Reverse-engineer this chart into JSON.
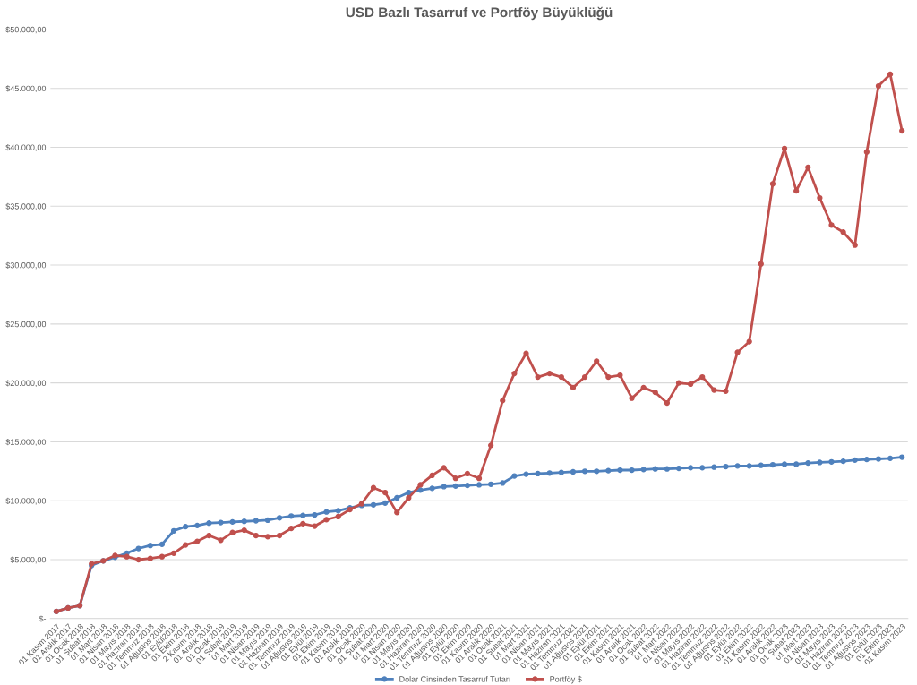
{
  "chart_data": {
    "type": "line",
    "title": "USD Bazlı Tasarruf ve Portföy Büyüklüğü",
    "categories": [
      "01 Kasım 2017",
      "01 Aralık 2017",
      "01 Ocak 2018",
      "01 Şubat 2018",
      "01 Mart 2018",
      "01 Nisan 2018",
      "01 Mayıs 2018",
      "01 Haziran 2018",
      "01 Temmuz 2018",
      "01 Ağustos 2018",
      "01 Eylül2018",
      "01 Ekim 2018",
      "2 Kasım 2018",
      "01 Aralık 2018",
      "01 Ocak 2019",
      "01 Şubat 2019",
      "01 Mart 2019",
      "01 Nisan 2019",
      "01 Mayıs 2019",
      "01 Haziran 2019",
      "01 Temmuz 2019",
      "01 Ağustos 2019",
      "01 Eylül 2019",
      "01 Ekim 2019",
      "01 Kasım 2019",
      "01 Aralık 2019",
      "01 Ocak 2020",
      "01 Şubat 2020",
      "01 Mart 2020",
      "01 Nisan 2020",
      "01 Mayıs 2020",
      "01 Haziran 2020",
      "01 Temmuz 2020",
      "01 Ağustos 2020",
      "01 Eylül 2020",
      "01 Ekim 2020",
      "01 Kasım 2020",
      "01 Aralık 2020",
      "01 Ocak 2021",
      "01 Şubat 2021",
      "01 Mart 2021",
      "01 Nisan 2021",
      "01 Mayıs 2021",
      "01 Haziran 2021",
      "01 Temmuz 2021",
      "01 Ağustos 2021",
      "01 Eylül 2021",
      "01 Ekim 2021",
      "01 Kasım 2021",
      "01 Aralık 2021",
      "01 Ocak 2022",
      "01 Şubat 2022",
      "01 Mart 2022",
      "01 Nisan 2022",
      "01 Mayıs 2022",
      "01 Haziran 2022",
      "01 Temmuz 2022",
      "01 Ağustos 2022",
      "01 Eylül 2022",
      "01 Ekim 2022",
      "01 Kasım 2022",
      "01 Aralık 2022",
      "01 Ocak 2023",
      "01 Şubat 2023",
      "01 Mart 2023",
      "01 Nisan 2023",
      "01 Mayıs 2023",
      "01 Haziran 2023",
      "01 Temmuz 2023",
      "01 Ağustos 2023",
      "01 Eylül 2023",
      "01 Ekim 2023",
      "01 Kasım 2023"
    ],
    "series": [
      {
        "name": "Dolar Cinsinden Tasarruf Tutarı",
        "color": "#4f81bd",
        "values": [
          600,
          900,
          1100,
          4500,
          4900,
          5200,
          5550,
          5950,
          6200,
          6300,
          7450,
          7800,
          7900,
          8100,
          8150,
          8200,
          8250,
          8300,
          8350,
          8550,
          8700,
          8750,
          8800,
          9050,
          9150,
          9400,
          9600,
          9650,
          9800,
          10250,
          10700,
          10900,
          11050,
          11200,
          11250,
          11300,
          11350,
          11400,
          11500,
          12100,
          12250,
          12300,
          12350,
          12400,
          12450,
          12500,
          12500,
          12550,
          12600,
          12600,
          12650,
          12700,
          12700,
          12750,
          12800,
          12800,
          12850,
          12900,
          12950,
          12950,
          13000,
          13050,
          13100,
          13100,
          13200,
          13250,
          13300,
          13350,
          13450,
          13500,
          13550,
          13600,
          13700
        ]
      },
      {
        "name": "Portföy $",
        "color": "#c0504d",
        "values": [
          600,
          900,
          1100,
          4650,
          4900,
          5350,
          5250,
          5000,
          5100,
          5250,
          5550,
          6250,
          6550,
          7050,
          6650,
          7300,
          7500,
          7050,
          6950,
          7050,
          7650,
          8050,
          7850,
          8400,
          8650,
          9250,
          9750,
          11100,
          10700,
          9000,
          10250,
          11350,
          12150,
          12800,
          11900,
          12300,
          11900,
          14700,
          18500,
          20800,
          22500,
          20500,
          20800,
          20500,
          19600,
          20500,
          21850,
          20500,
          20650,
          18700,
          19600,
          19200,
          18300,
          20000,
          19900,
          20500,
          19400,
          19300,
          22600,
          23500,
          30100,
          36900,
          39900,
          36300,
          38300,
          35700,
          33400,
          32800,
          31700,
          39600,
          45200,
          46200,
          41400
        ]
      }
    ],
    "ylim": [
      0,
      50000
    ],
    "yticks": [
      {
        "value": 0,
        "label": "$-"
      },
      {
        "value": 5000,
        "label": "$5.000,00"
      },
      {
        "value": 10000,
        "label": "$10.000,00"
      },
      {
        "value": 15000,
        "label": "$15.000,00"
      },
      {
        "value": 20000,
        "label": "$20.000,00"
      },
      {
        "value": 25000,
        "label": "$25.000,00"
      },
      {
        "value": 30000,
        "label": "$30.000,00"
      },
      {
        "value": 35000,
        "label": "$35.000,00"
      },
      {
        "value": 40000,
        "label": "$40.000,00"
      },
      {
        "value": 45000,
        "label": "$45.000,00"
      },
      {
        "value": 50000,
        "label": "$50.000,00"
      }
    ],
    "grid": "y",
    "legend": "bottom",
    "marker": "circle",
    "line_style": "solid"
  }
}
